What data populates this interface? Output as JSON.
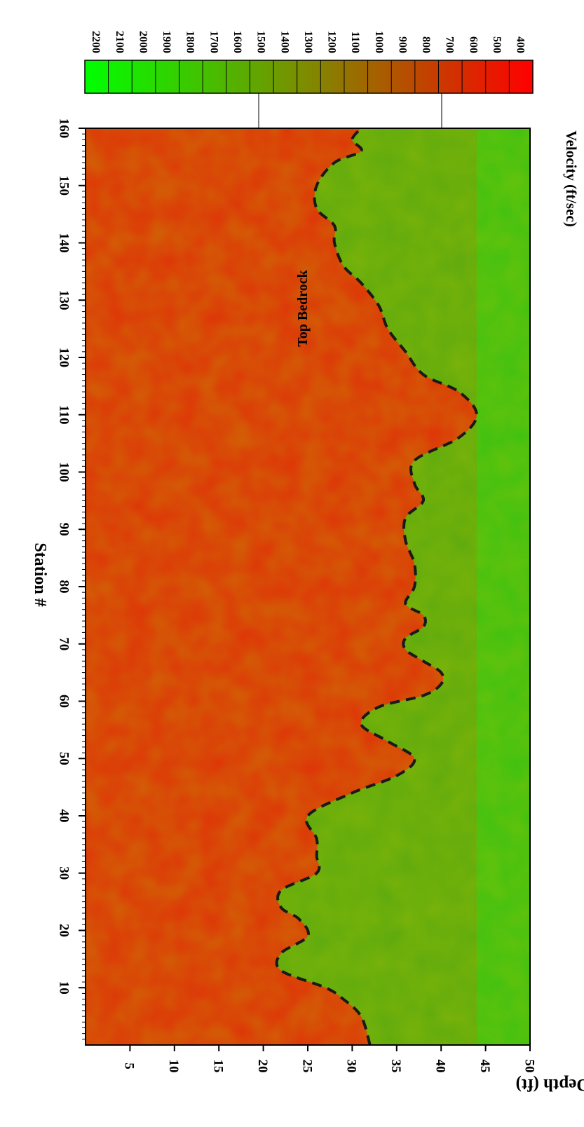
{
  "chart_data": {
    "type": "heatmap",
    "title": "",
    "xlabel": "Station #",
    "ylabel": "Depth (ft)",
    "colorbar_label": "Velocity (ft/sec)",
    "xlim": [
      0,
      160
    ],
    "ylim": [
      0,
      50
    ],
    "x_ticks": [
      10,
      20,
      30,
      40,
      50,
      60,
      70,
      80,
      90,
      100,
      110,
      120,
      130,
      140,
      150,
      160
    ],
    "y_ticks": [
      5,
      10,
      15,
      20,
      25,
      30,
      35,
      40,
      45,
      50
    ],
    "colorbar_ticks": [
      2200,
      2100,
      2000,
      1900,
      1800,
      1700,
      1600,
      1500,
      1400,
      1300,
      1200,
      1100,
      1000,
      900,
      800,
      700,
      600,
      500,
      400
    ],
    "colorbar_low_color": "#ff0000",
    "colorbar_high_color": "#00ff00",
    "annotation": "Top Bedrock",
    "bedrock_depth_profile": {
      "station": [
        0,
        5,
        8,
        10,
        13,
        16,
        19,
        22,
        24,
        27,
        30,
        33,
        36,
        40,
        44,
        47,
        50,
        53,
        56,
        59,
        61,
        63,
        65,
        67,
        69,
        71,
        73,
        75,
        77,
        80,
        84,
        88,
        92,
        95,
        98,
        102,
        106,
        110,
        114,
        117,
        121,
        125,
        129,
        133,
        136,
        140,
        143,
        146,
        150,
        154,
        156,
        158,
        160
      ],
      "depth": [
        32,
        31,
        29,
        27,
        22,
        22,
        25,
        24,
        22,
        22,
        26,
        26,
        26,
        25,
        30,
        35,
        37,
        34,
        31,
        33,
        38,
        40,
        40,
        38,
        36,
        36,
        38,
        38,
        36,
        37,
        37,
        36,
        36,
        38,
        37,
        37,
        42,
        44,
        42,
        38,
        36,
        34,
        33,
        31,
        29,
        28,
        28,
        26,
        26,
        28,
        31,
        30,
        31
      ]
    }
  }
}
